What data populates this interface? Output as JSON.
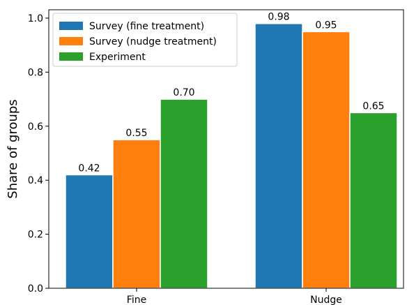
{
  "chart_data": {
    "type": "bar",
    "title": "",
    "xlabel": "",
    "ylabel": "Share of groups",
    "categories": [
      "Fine",
      "Nudge"
    ],
    "series": [
      {
        "name": "Survey (fine treatment)",
        "values": [
          0.42,
          0.98
        ],
        "labels": [
          "0.42",
          "0.98"
        ],
        "color": "#1f77b4"
      },
      {
        "name": "Survey (nudge treatment)",
        "values": [
          0.55,
          0.95
        ],
        "labels": [
          "0.55",
          "0.95"
        ],
        "color": "#ff7f0e"
      },
      {
        "name": "Experiment",
        "values": [
          0.7,
          0.65
        ],
        "labels": [
          "0.70",
          "0.65"
        ],
        "color": "#2ca02c"
      }
    ],
    "ylim": [
      0,
      1.0
    ],
    "yticks": [
      0.0,
      0.2,
      0.4,
      0.6,
      0.8,
      1.0
    ],
    "ytick_labels": [
      "0.0",
      "0.2",
      "0.4",
      "0.6",
      "0.8",
      "1.0"
    ],
    "grid": false,
    "legend_position": "top-left"
  }
}
